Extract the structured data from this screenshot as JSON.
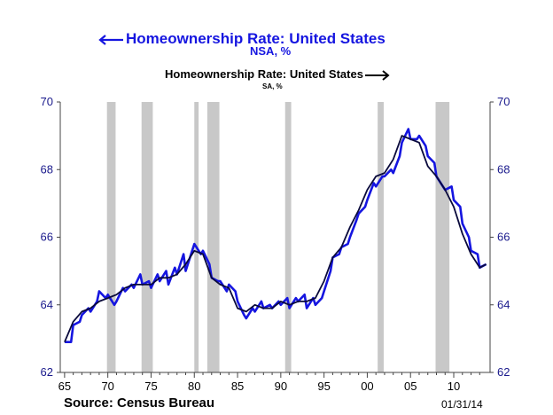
{
  "titles": {
    "nsa_title": "Homeownership Rate: United States",
    "nsa_subtitle": "NSA, %",
    "sa_title": "Homeownership Rate: United States",
    "sa_subtitle": "SA, %"
  },
  "source": "Source:  Census Bureau",
  "date_stamp": "01/31/14",
  "colors": {
    "nsa": "#1515e0",
    "sa": "#0a0a3c",
    "recession": "#c8c8c8",
    "axis_text": "#1a1a8c"
  },
  "chart_data": {
    "type": "line",
    "title": "Homeownership Rate: United States",
    "xlim": [
      1964.5,
      2014.2
    ],
    "ylim": [
      62,
      70
    ],
    "x_ticks": [
      1965,
      1970,
      1975,
      1980,
      1985,
      1990,
      1995,
      2000,
      2005,
      2010
    ],
    "x_tick_labels": [
      "65",
      "70",
      "75",
      "80",
      "85",
      "90",
      "95",
      "00",
      "05",
      "10"
    ],
    "y_ticks": [
      62,
      64,
      66,
      68,
      70
    ],
    "y_tick_labels": [
      "62",
      "64",
      "66",
      "68",
      "70"
    ],
    "y_right_tick_labels": [
      "62",
      "64",
      "66",
      "68",
      "70"
    ],
    "grid": false,
    "recessions": [
      [
        1969.9,
        1970.9
      ],
      [
        1973.9,
        1975.2
      ],
      [
        1980.0,
        1980.5
      ],
      [
        1981.5,
        1982.9
      ],
      [
        1990.5,
        1991.2
      ],
      [
        2001.2,
        2001.9
      ],
      [
        2007.9,
        2009.5
      ]
    ],
    "series": [
      {
        "name": "Homeownership Rate: United States (NSA, %)",
        "axis": "left",
        "x": [
          1965.0,
          1965.75,
          1966.0,
          1966.75,
          1967.0,
          1967.75,
          1968.0,
          1968.75,
          1969.0,
          1969.75,
          1970.0,
          1970.75,
          1971.0,
          1971.75,
          1972.0,
          1972.75,
          1973.0,
          1973.75,
          1974.0,
          1974.75,
          1975.0,
          1975.75,
          1976.0,
          1976.75,
          1977.0,
          1977.75,
          1978.0,
          1978.75,
          1979.0,
          1979.75,
          1980.0,
          1980.75,
          1981.0,
          1981.75,
          1982.0,
          1982.75,
          1983.0,
          1983.75,
          1984.0,
          1984.75,
          1985.0,
          1985.75,
          1986.0,
          1986.75,
          1987.0,
          1987.75,
          1988.0,
          1988.75,
          1989.0,
          1989.75,
          1990.0,
          1990.75,
          1991.0,
          1991.75,
          1992.0,
          1992.75,
          1993.0,
          1993.75,
          1994.0,
          1994.75,
          1995.0,
          1995.75,
          1996.0,
          1996.75,
          1997.0,
          1997.75,
          1998.0,
          1998.75,
          1999.0,
          1999.75,
          2000.0,
          2000.75,
          2001.0,
          2001.75,
          2002.0,
          2002.75,
          2003.0,
          2003.75,
          2004.0,
          2004.75,
          2005.0,
          2005.75,
          2006.0,
          2006.75,
          2007.0,
          2007.75,
          2008.0,
          2008.75,
          2009.0,
          2009.75,
          2010.0,
          2010.75,
          2011.0,
          2011.75,
          2012.0,
          2012.75,
          2013.0,
          2013.75
        ],
        "values": [
          62.9,
          62.9,
          63.4,
          63.5,
          63.7,
          63.9,
          63.8,
          64.1,
          64.4,
          64.2,
          64.3,
          64.0,
          64.1,
          64.5,
          64.4,
          64.6,
          64.5,
          64.9,
          64.6,
          64.7,
          64.5,
          64.9,
          64.7,
          65.0,
          64.6,
          65.1,
          64.9,
          65.5,
          65.0,
          65.6,
          65.8,
          65.5,
          65.6,
          65.2,
          64.8,
          64.7,
          64.7,
          64.4,
          64.6,
          64.4,
          64.1,
          63.7,
          63.6,
          63.9,
          63.8,
          64.1,
          63.9,
          64.0,
          63.9,
          64.1,
          64.0,
          64.2,
          63.9,
          64.2,
          64.1,
          64.3,
          63.9,
          64.2,
          64.0,
          64.2,
          64.4,
          65.0,
          65.4,
          65.5,
          65.7,
          65.8,
          66.0,
          66.5,
          66.7,
          66.9,
          67.1,
          67.6,
          67.5,
          67.8,
          67.8,
          68.0,
          67.9,
          68.4,
          68.8,
          69.2,
          68.9,
          68.9,
          69.0,
          68.7,
          68.4,
          68.2,
          67.8,
          67.5,
          67.4,
          67.5,
          67.1,
          66.9,
          66.4,
          66.0,
          65.6,
          65.5,
          65.1,
          65.2
        ]
      },
      {
        "name": "Homeownership Rate: United States (SA, %)",
        "axis": "right",
        "x": [
          1965.0,
          1966.0,
          1967.0,
          1968.0,
          1969.0,
          1970.0,
          1971.0,
          1972.0,
          1973.0,
          1974.0,
          1975.0,
          1976.0,
          1977.0,
          1978.0,
          1979.0,
          1980.0,
          1981.0,
          1982.0,
          1983.0,
          1984.0,
          1985.0,
          1986.0,
          1987.0,
          1988.0,
          1989.0,
          1990.0,
          1991.0,
          1992.0,
          1993.0,
          1994.0,
          1995.0,
          1996.0,
          1997.0,
          1998.0,
          1999.0,
          2000.0,
          2001.0,
          2002.0,
          2003.0,
          2004.0,
          2005.0,
          2006.0,
          2007.0,
          2008.0,
          2009.0,
          2010.0,
          2011.0,
          2012.0,
          2013.0,
          2013.75
        ],
        "values": [
          62.9,
          63.5,
          63.8,
          63.9,
          64.1,
          64.2,
          64.3,
          64.5,
          64.6,
          64.6,
          64.6,
          64.8,
          64.8,
          64.9,
          65.2,
          65.6,
          65.5,
          64.8,
          64.6,
          64.5,
          63.9,
          63.8,
          64.0,
          63.9,
          63.9,
          64.1,
          64.0,
          64.1,
          64.1,
          64.2,
          64.7,
          65.4,
          65.7,
          66.3,
          66.8,
          67.4,
          67.8,
          67.9,
          68.3,
          69.0,
          68.9,
          68.8,
          68.1,
          67.8,
          67.4,
          66.9,
          66.1,
          65.5,
          65.1,
          65.2
        ]
      }
    ]
  }
}
